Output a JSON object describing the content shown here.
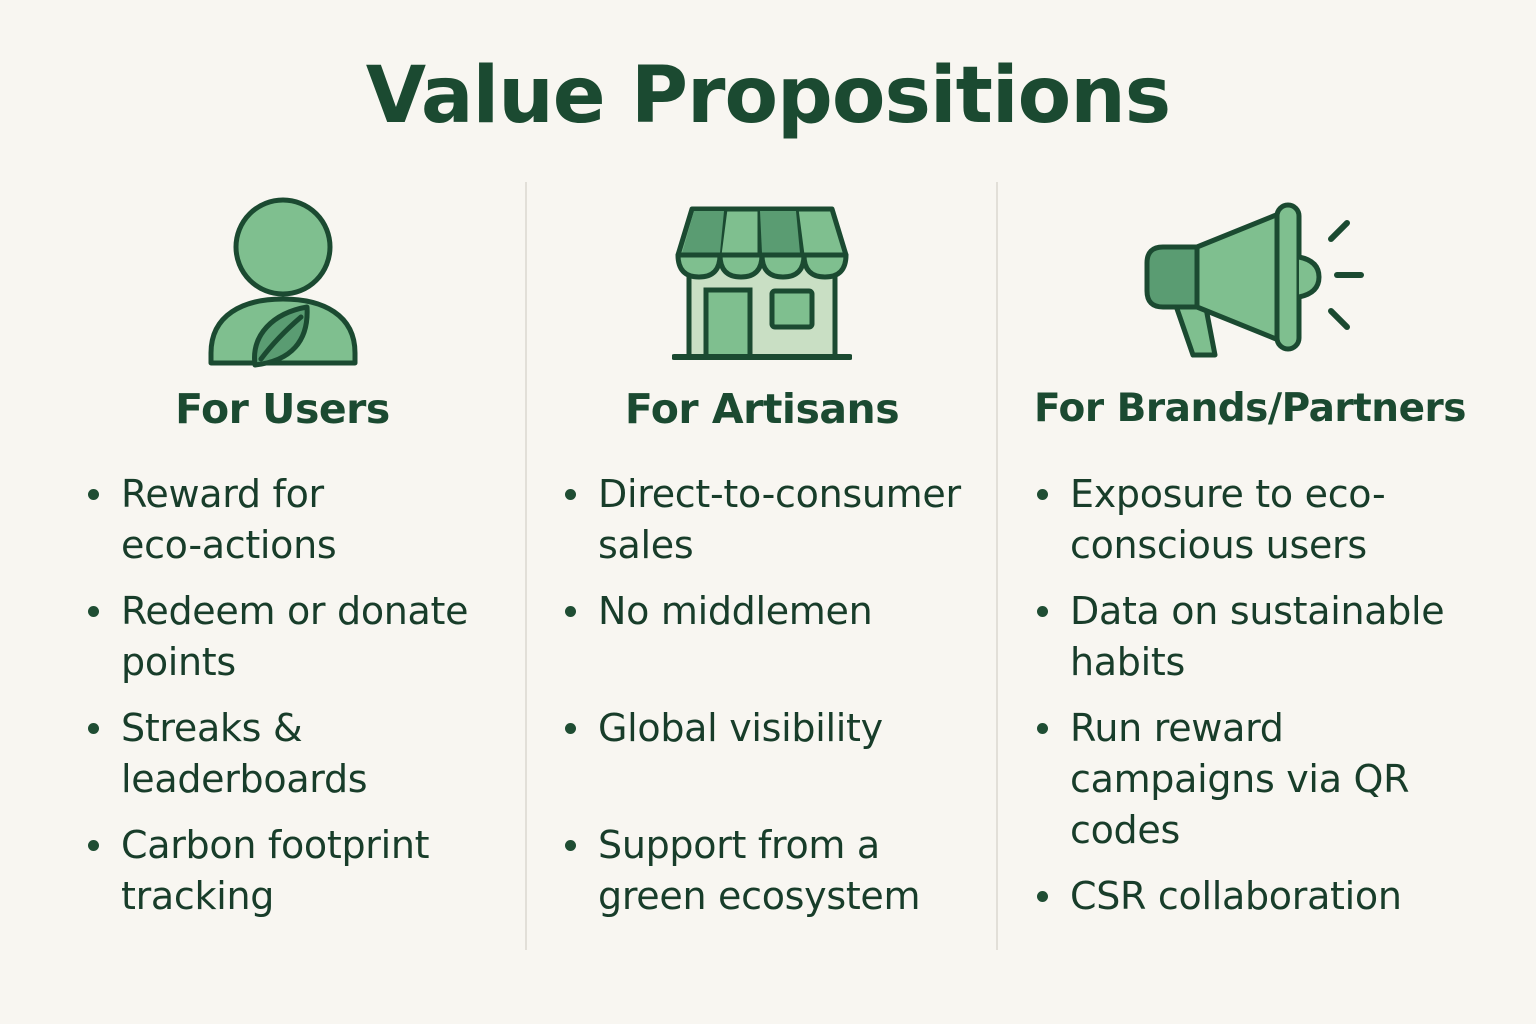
{
  "title": "Value Propositions",
  "colors": {
    "dark_green": "#1b4a31",
    "mid_green": "#5a9c72",
    "light_green": "#7fbf8f",
    "pale_green": "#c9dfc4",
    "background": "#f8f6f1"
  },
  "columns": [
    {
      "heading": "For Users",
      "icon": "user-leaf-icon",
      "bullets": [
        "Reward for\neco-actions",
        "Redeem or donate\npoints",
        "Streaks &\nleaderboards",
        "Carbon footprint\ntracking"
      ]
    },
    {
      "heading": "For Artisans",
      "icon": "storefront-icon",
      "bullets": [
        "Direct-to-consumer\nsales",
        "No middlemen",
        "Global visibility",
        "Support from a\ngreen ecosystem"
      ]
    },
    {
      "heading": "For Brands/Partners",
      "icon": "megaphone-icon",
      "bullets": [
        "Exposure to eco-\nconscious users",
        "Data on sustainable\nhabits",
        "Run reward\ncampaigns via QR\ncodes",
        "CSR collaboration"
      ]
    }
  ]
}
